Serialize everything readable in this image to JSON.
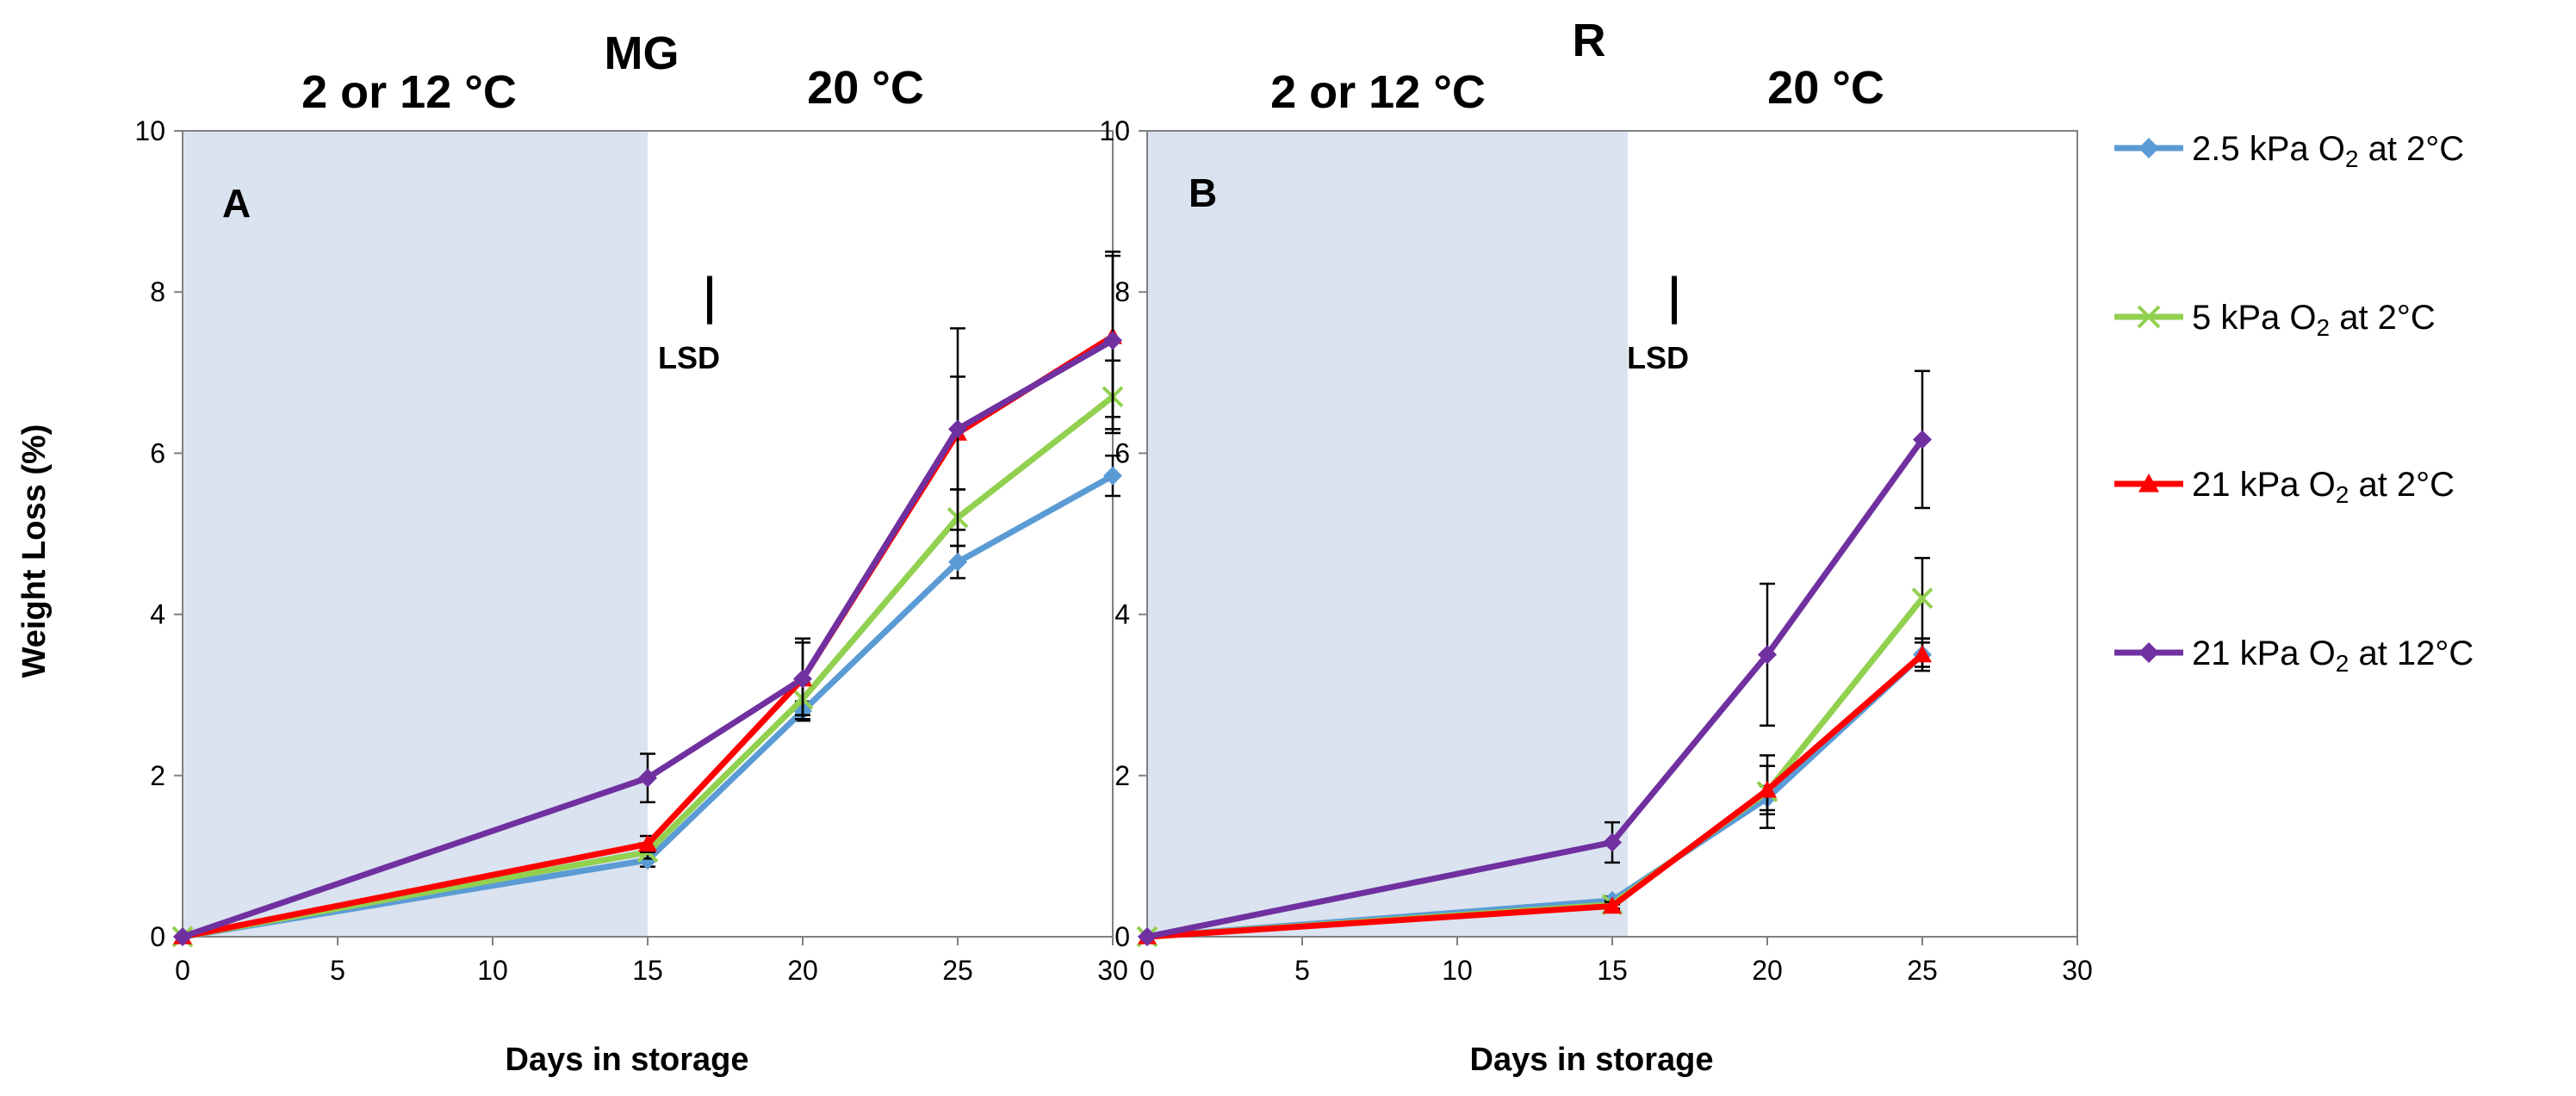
{
  "chart_data": [
    {
      "type": "line",
      "panel_label": "A",
      "title": "MG",
      "phase_labels": [
        "2  or 12 °C",
        "20 °C"
      ],
      "cold_phase_days": [
        0,
        15
      ],
      "xlabel": "Days in storage",
      "ylabel": "Weight Loss (%)",
      "xlim": [
        0,
        30
      ],
      "ylim": [
        0,
        10
      ],
      "xticks": [
        "0",
        "5",
        "10",
        "15",
        "20",
        "25",
        "30"
      ],
      "yticks": [
        "0",
        "2",
        "4",
        "6",
        "8",
        "10"
      ],
      "lsd_label": "LSD",
      "lsd_day": 17,
      "lsd_range": [
        7.6,
        8.2
      ],
      "series": [
        {
          "name": "2.5  kPa O2 at 2°C",
          "color": "#5b9bd5",
          "marker": "diamond",
          "x": [
            0,
            15,
            20,
            25,
            30
          ],
          "y": [
            0.0,
            0.95,
            2.8,
            4.65,
            5.72
          ],
          "err": [
            0.0,
            0.08,
            0.12,
            0.2,
            0.25
          ]
        },
        {
          "name": "5 kPa O2 at 2°C",
          "color": "#92d050",
          "marker": "x",
          "x": [
            0,
            15,
            20,
            25,
            30
          ],
          "y": [
            0.0,
            1.05,
            2.95,
            5.2,
            6.7
          ],
          "err": [
            0.0,
            0.08,
            0.2,
            0.35,
            0.45
          ]
        },
        {
          "name": "21 kPa O2 at 2°C",
          "color": "#ff0000",
          "marker": "triangle",
          "x": [
            0,
            15,
            20,
            25,
            30
          ],
          "y": [
            0.0,
            1.15,
            3.2,
            6.25,
            7.45
          ],
          "err": [
            0.0,
            0.1,
            0.5,
            0.7,
            1.0
          ]
        },
        {
          "name": "21 kPa O2 at 12°C",
          "color": "#7030a0",
          "marker": "diamond",
          "x": [
            0,
            15,
            20,
            25,
            30
          ],
          "y": [
            0.0,
            1.97,
            3.2,
            6.3,
            7.4
          ],
          "err": [
            0.0,
            0.3,
            0.45,
            1.25,
            1.1
          ]
        }
      ]
    },
    {
      "type": "line",
      "panel_label": "B",
      "title": "R",
      "phase_labels": [
        "2  or 12 °C",
        "20 °C"
      ],
      "cold_phase_days": [
        0,
        15.5
      ],
      "xlabel": "Days in storage",
      "ylabel": "Weight Loss (%)",
      "xlim": [
        0,
        30
      ],
      "ylim": [
        0,
        10
      ],
      "xticks": [
        "0",
        "5",
        "10",
        "15",
        "20",
        "25",
        "30"
      ],
      "yticks": [
        "0",
        "2",
        "4",
        "6",
        "8",
        "10"
      ],
      "lsd_label": "LSD",
      "lsd_day": 17,
      "lsd_range": [
        7.6,
        8.2
      ],
      "series": [
        {
          "name": "2.5  kPa O2 at 2°C",
          "color": "#5b9bd5",
          "marker": "diamond",
          "x": [
            0,
            15,
            20,
            25
          ],
          "y": [
            0.0,
            0.45,
            1.72,
            3.5
          ],
          "err": [
            0.0,
            0.05,
            0.15,
            0.2
          ]
        },
        {
          "name": "5 kPa O2 at 2°C",
          "color": "#92d050",
          "marker": "x",
          "x": [
            0,
            15,
            20,
            25
          ],
          "y": [
            0.0,
            0.4,
            1.8,
            4.2
          ],
          "err": [
            0.0,
            0.05,
            0.45,
            0.5
          ]
        },
        {
          "name": "21 kPa O2 at 2°C",
          "color": "#ff0000",
          "marker": "triangle",
          "x": [
            0,
            15,
            20,
            25
          ],
          "y": [
            0.0,
            0.38,
            1.82,
            3.5
          ],
          "err": [
            0.0,
            0.05,
            0.3,
            0.15
          ]
        },
        {
          "name": "21 kPa O2 at 12°C",
          "color": "#7030a0",
          "marker": "diamond",
          "x": [
            0,
            15,
            20,
            25
          ],
          "y": [
            0.0,
            1.17,
            3.5,
            6.17
          ],
          "err": [
            0.0,
            0.25,
            0.88,
            0.85
          ]
        }
      ]
    }
  ],
  "legend": [
    {
      "prefix": "2.5  kPa O",
      "sub": "2",
      "suffix": " at 2°C",
      "color": "#5b9bd5",
      "marker": "diamond"
    },
    {
      "prefix": "5 kPa O",
      "sub": "2",
      "suffix": " at 2°C",
      "color": "#92d050",
      "marker": "x"
    },
    {
      "prefix": "21 kPa O",
      "sub": "2",
      "suffix": " at 2°C",
      "color": "#ff0000",
      "marker": "triangle"
    },
    {
      "prefix": "21 kPa O",
      "sub": "2",
      "suffix": " at 12°C",
      "color": "#7030a0",
      "marker": "diamond"
    }
  ],
  "colors": {
    "cold_band": "#dae3ef",
    "axis": "#808080",
    "error_bar": "#000000"
  }
}
